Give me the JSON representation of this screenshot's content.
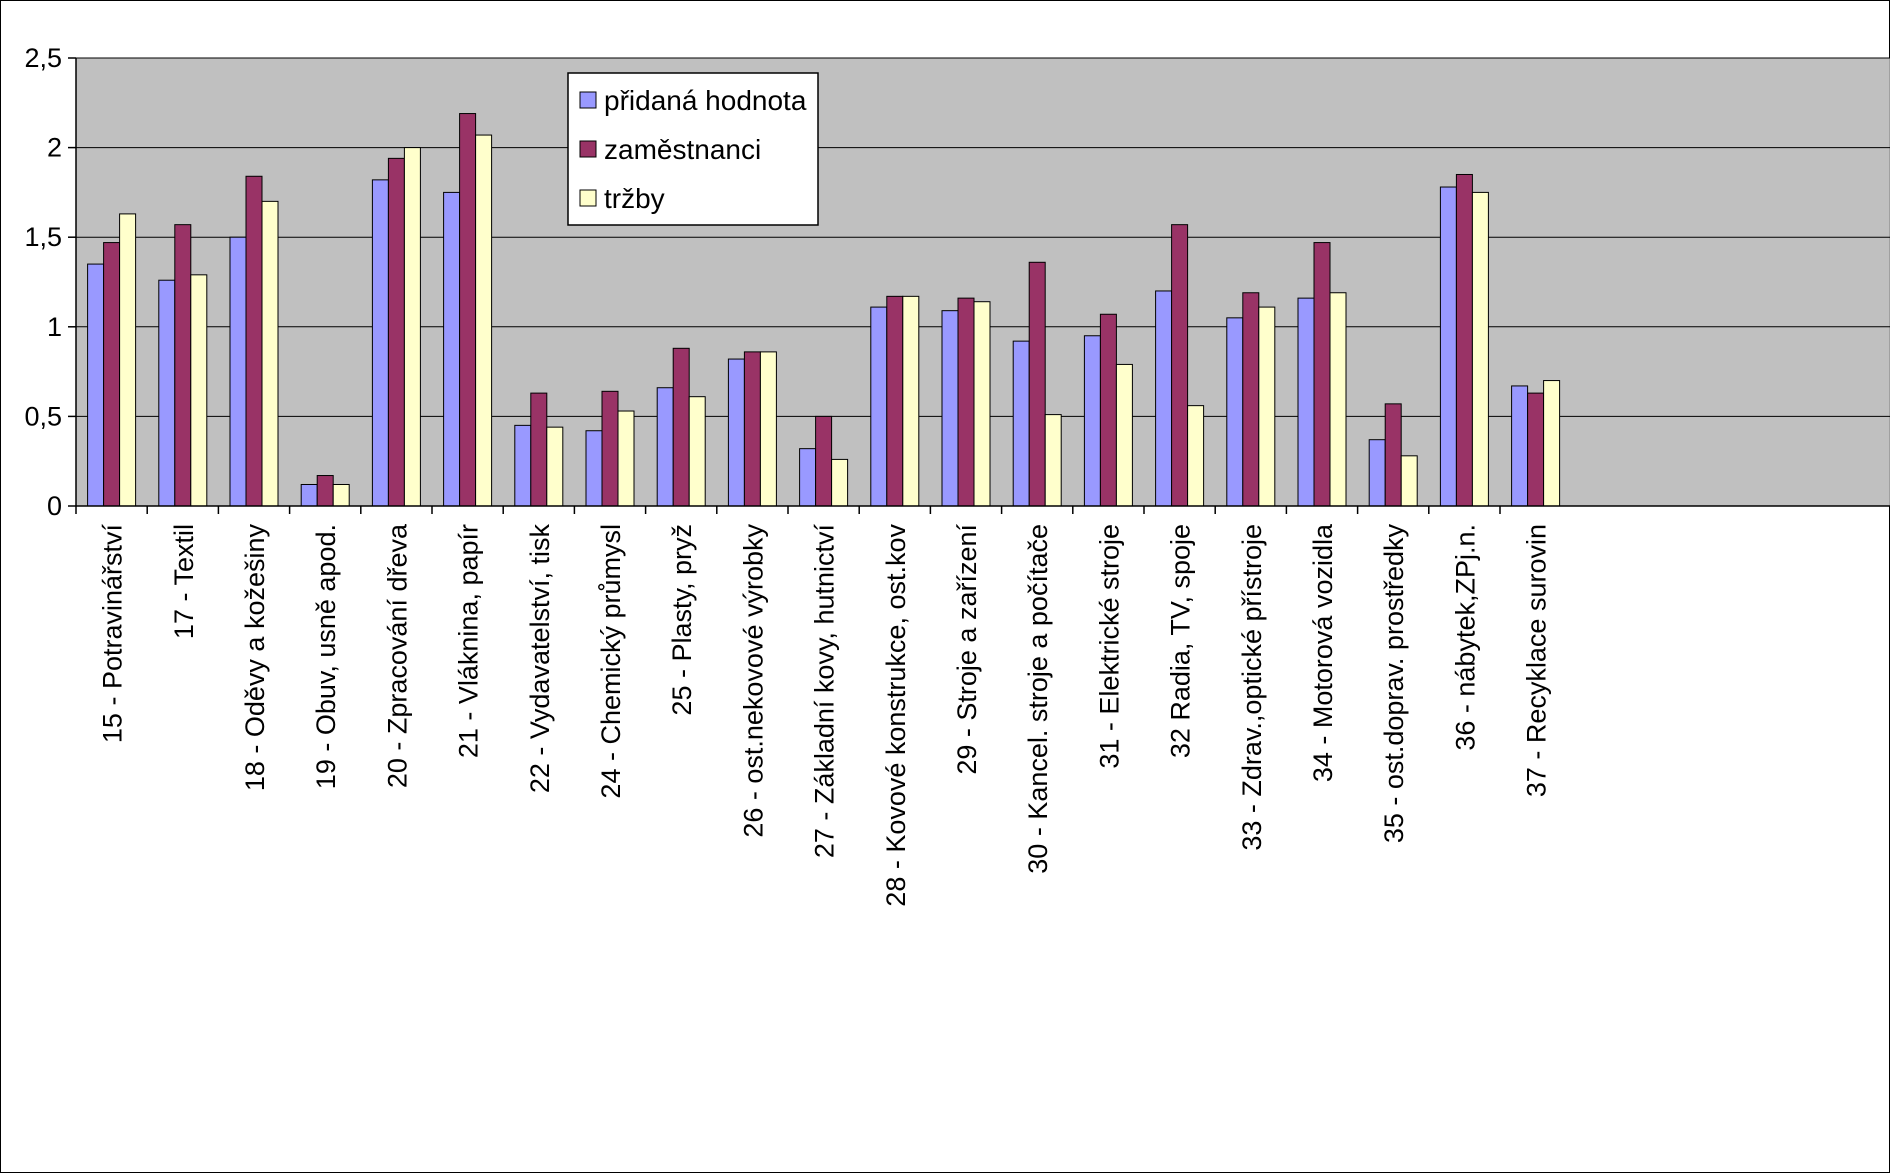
{
  "chart_data": {
    "type": "bar",
    "title": "",
    "xlabel": "",
    "ylabel": "",
    "ylim": [
      0,
      2.5
    ],
    "yticks": [
      "0",
      "0,5",
      "1",
      "1,5",
      "2",
      "2,5"
    ],
    "grid": true,
    "legend_position": "top-center",
    "plot_background": "#C0C0C0",
    "categories": [
      "15 - Potravinářství",
      "17 - Textil",
      "18 - Oděvy a kožešiny",
      "19 - Obuv, usně apod.",
      "20 - Zpracování dřeva",
      "21 - Vláknina, papír",
      "22 - Vydavatelství, tisk",
      "24 - Chemický průmysl",
      "25 - Plasty, pryž",
      "26 - ost.nekovové výrobky",
      "27 - Základní kovy, hutnictví",
      "28 - Kovové konstrukce, ost.kov",
      "29 - Stroje a zařízení",
      "30 - Kancel. stroje a počítače",
      "31 - Elektrické stroje",
      "32 Radia, TV, spoje",
      "33 - Zdrav.,optické přístroje",
      "34 - Motorová vozidla",
      "35 - ost.doprav. prostředky",
      "36 - nábytek,ZPj.n.",
      "37 - Recyklace surovin"
    ],
    "series": [
      {
        "name": "přidaná hodnota",
        "color": "#9999FF",
        "values": [
          1.35,
          1.26,
          1.5,
          0.12,
          1.82,
          1.75,
          0.45,
          0.42,
          0.66,
          0.82,
          0.32,
          1.11,
          1.09,
          0.92,
          0.95,
          1.2,
          1.05,
          1.16,
          0.37,
          1.78,
          0.67
        ]
      },
      {
        "name": "zaměstnanci",
        "color": "#993366",
        "values": [
          1.47,
          1.57,
          1.84,
          0.17,
          1.94,
          2.19,
          0.63,
          0.64,
          0.88,
          0.86,
          0.5,
          1.17,
          1.16,
          1.36,
          1.07,
          1.57,
          1.19,
          1.47,
          0.57,
          1.85,
          0.63
        ]
      },
      {
        "name": "tržby",
        "color": "#FFFFCC",
        "values": [
          1.63,
          1.29,
          1.7,
          0.12,
          2.0,
          2.07,
          0.44,
          0.53,
          0.61,
          0.86,
          0.26,
          1.17,
          1.14,
          0.51,
          0.79,
          0.56,
          1.11,
          1.19,
          0.28,
          1.75,
          0.7
        ]
      }
    ]
  }
}
